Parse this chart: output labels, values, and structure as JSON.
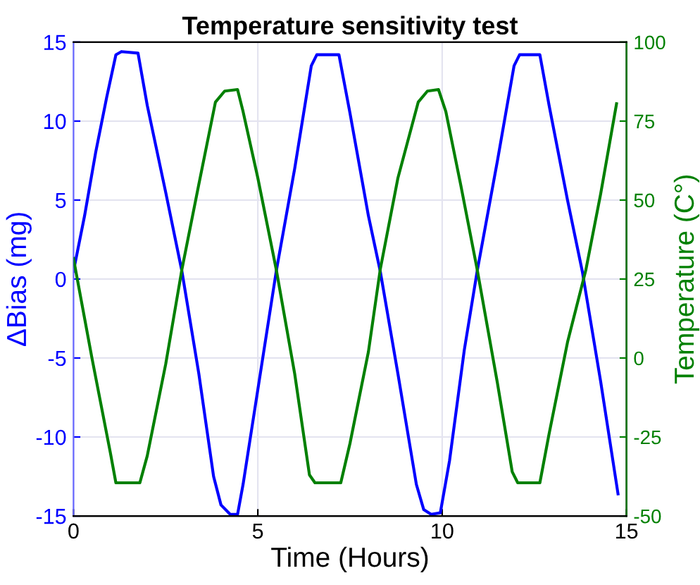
{
  "chart_data": {
    "type": "line",
    "title": "Temperature sensitivity test",
    "xlabel": "Time (Hours)",
    "ylabel": "ΔBias (mg)",
    "y2label": "Temperature (C°)",
    "xlim": [
      0,
      15
    ],
    "xticks": [
      0,
      5,
      10,
      15
    ],
    "ylim": [
      -15,
      15
    ],
    "yticks": [
      -15,
      -10,
      -5,
      0,
      5,
      10,
      15
    ],
    "y2lim": [
      -50,
      100
    ],
    "y2ticks": [
      -50,
      -25,
      0,
      25,
      50,
      75,
      100
    ],
    "grid": true,
    "legend": false,
    "series": [
      {
        "color": "#0000ff",
        "x": [
          0,
          0.3,
          0.6,
          0.9,
          1.15,
          1.3,
          1.75,
          2.0,
          2.5,
          2.94,
          3.4,
          3.8,
          4.0,
          4.25,
          4.45,
          4.6,
          5.0,
          5.5,
          6.0,
          6.45,
          6.6,
          7.2,
          7.5,
          8.0,
          8.32,
          8.8,
          9.3,
          9.5,
          9.7,
          9.95,
          10.2,
          10.6,
          10.95,
          11.5,
          11.95,
          12.1,
          12.65,
          12.9,
          13.4,
          13.8,
          14.3,
          14.77
        ],
        "values": [
          0.5,
          4,
          8,
          11.5,
          14.2,
          14.4,
          14.3,
          11,
          5.5,
          0.5,
          -6,
          -12.5,
          -14.3,
          -14.9,
          -14.9,
          -13,
          -7,
          0.5,
          7,
          13.5,
          14.2,
          14.2,
          10.5,
          4,
          0.5,
          -6,
          -13,
          -14.6,
          -14.9,
          -14.8,
          -11.5,
          -4.5,
          0.5,
          7.5,
          13.5,
          14.2,
          14.2,
          11,
          5,
          0.5,
          -6.5,
          -13.6
        ]
      },
      {
        "color": "#008000",
        "axis": "y2",
        "x": [
          0,
          0.5,
          1.0,
          1.15,
          1.8,
          2.0,
          2.5,
          2.94,
          3.4,
          3.85,
          4.1,
          4.45,
          4.6,
          5.0,
          5.5,
          6.0,
          6.4,
          6.55,
          7.25,
          7.5,
          8.0,
          8.32,
          8.8,
          9.35,
          9.6,
          9.9,
          10.1,
          10.5,
          10.95,
          11.5,
          11.9,
          12.05,
          12.65,
          12.9,
          13.4,
          13.9,
          14.3,
          14.73
        ],
        "values": [
          31.5,
          0,
          -30,
          -39.5,
          -39.5,
          -31,
          -2,
          28,
          55,
          81,
          84.5,
          85,
          78,
          57,
          28,
          -5,
          -37,
          -39.5,
          -39.5,
          -27,
          2,
          28,
          57,
          81,
          84.5,
          85,
          78,
          55,
          28,
          -8,
          -36,
          -39.5,
          -39.5,
          -24,
          5,
          28,
          52,
          80.5
        ]
      }
    ]
  }
}
